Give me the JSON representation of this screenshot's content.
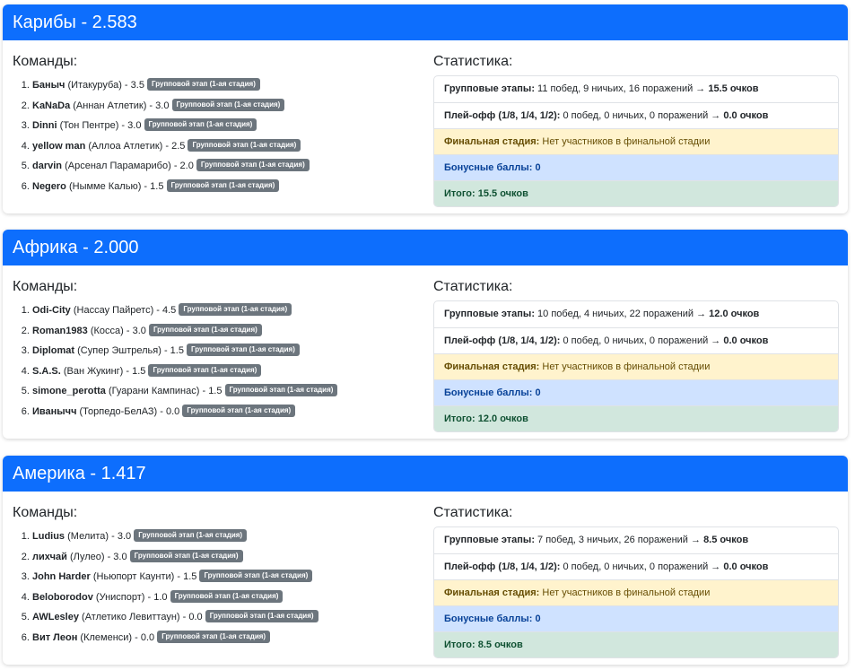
{
  "regions": [
    {
      "title": "Карибы - 2.583",
      "teams_heading": "Команды:",
      "stats_heading": "Статистика:",
      "teams": [
        {
          "player": "Баныч",
          "club": "(Итакуруба) - 3.5",
          "stage": "Групповой этап (1-ая стадия)"
        },
        {
          "player": "KaNaDa",
          "club": "(Аннан Атлетик) - 3.0",
          "stage": "Групповой этап (1-ая стадия)"
        },
        {
          "player": "Dinni",
          "club": "(Тон Пентре) - 3.0",
          "stage": "Групповой этап (1-ая стадия)"
        },
        {
          "player": "yellow man",
          "club": "(Аллоа Атлетик) - 2.5",
          "stage": "Групповой этап (1-ая стадия)"
        },
        {
          "player": "darvin",
          "club": "(Арсенал Парамарибо) - 2.0",
          "stage": "Групповой этап (1-ая стадия)"
        },
        {
          "player": "Negero",
          "club": "(Нымме Калью) - 1.5",
          "stage": "Групповой этап (1-ая стадия)"
        }
      ],
      "stats": {
        "group_label": "Групповые этапы:",
        "group_text": "11 побед, 9 ничьих, 16 поражений →",
        "group_points": "15.5 очков",
        "playoff_label": "Плей-офф (1/8, 1/4, 1/2):",
        "playoff_text": "0 побед, 0 ничьих, 0 поражений →",
        "playoff_points": "0.0 очков",
        "final_label": "Финальная стадия:",
        "final_text": "Нет участников в финальной стадии",
        "bonus": "Бонусные баллы: 0",
        "total": "Итого: 15.5 очков"
      }
    },
    {
      "title": "Африка - 2.000",
      "teams_heading": "Команды:",
      "stats_heading": "Статистика:",
      "teams": [
        {
          "player": "Odi-City",
          "club": "(Нассау Пайретс) - 4.5",
          "stage": "Групповой этап (1-ая стадия)"
        },
        {
          "player": "Roman1983",
          "club": "(Косса) - 3.0",
          "stage": "Групповой этап (1-ая стадия)"
        },
        {
          "player": "Diplomat",
          "club": "(Супер Эштрелья) - 1.5",
          "stage": "Групповой этап (1-ая стадия)"
        },
        {
          "player": "S.A.S.",
          "club": "(Ван Жукинг) - 1.5",
          "stage": "Групповой этап (1-ая стадия)"
        },
        {
          "player": "simone_perotta",
          "club": "(Гуарани Кампинас) - 1.5",
          "stage": "Групповой этап (1-ая стадия)"
        },
        {
          "player": "Иванычч",
          "club": "(Торпедо-БелАЗ) - 0.0",
          "stage": "Групповой этап (1-ая стадия)"
        }
      ],
      "stats": {
        "group_label": "Групповые этапы:",
        "group_text": "10 побед, 4 ничьих, 22 поражений →",
        "group_points": "12.0 очков",
        "playoff_label": "Плей-офф (1/8, 1/4, 1/2):",
        "playoff_text": "0 побед, 0 ничьих, 0 поражений →",
        "playoff_points": "0.0 очков",
        "final_label": "Финальная стадия:",
        "final_text": "Нет участников в финальной стадии",
        "bonus": "Бонусные баллы: 0",
        "total": "Итого: 12.0 очков"
      }
    },
    {
      "title": "Америка - 1.417",
      "teams_heading": "Команды:",
      "stats_heading": "Статистика:",
      "teams": [
        {
          "player": "Ludius",
          "club": "(Мелита) - 3.0",
          "stage": "Групповой этап (1-ая стадия)"
        },
        {
          "player": "лихчай",
          "club": "(Лулео) - 3.0",
          "stage": "Групповой этап (1-ая стадия)"
        },
        {
          "player": "John Harder",
          "club": "(Ньюпорт Каунти) - 1.5",
          "stage": "Групповой этап (1-ая стадия)"
        },
        {
          "player": "Beloborodov",
          "club": "(Униспорт) - 1.0",
          "stage": "Групповой этап (1-ая стадия)"
        },
        {
          "player": "AWLesley",
          "club": "(Атлетико Левиттаун) - 0.0",
          "stage": "Групповой этап (1-ая стадия)"
        },
        {
          "player": "Вит Леон",
          "club": "(Клеменси) - 0.0",
          "stage": "Групповой этап (1-ая стадия)"
        }
      ],
      "stats": {
        "group_label": "Групповые этапы:",
        "group_text": "7 побед, 3 ничьих, 26 поражений →",
        "group_points": "8.5 очков",
        "playoff_label": "Плей-офф (1/8, 1/4, 1/2):",
        "playoff_text": "0 побед, 0 ничьих, 0 поражений →",
        "playoff_points": "0.0 очков",
        "final_label": "Финальная стадия:",
        "final_text": "Нет участников в финальной стадии",
        "bonus": "Бонусные баллы: 0",
        "total": "Итого: 8.5 очков"
      }
    }
  ]
}
